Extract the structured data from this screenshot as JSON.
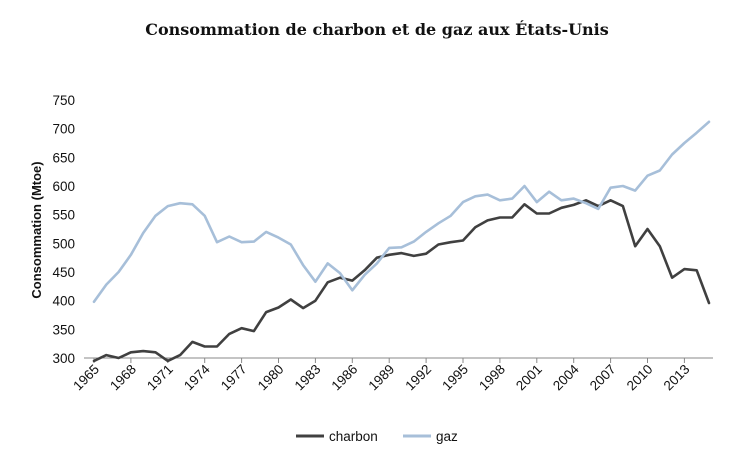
{
  "chart_data": {
    "type": "line",
    "title": "Consommation de charbon et de gaz aux États-Unis",
    "ylabel": "Consommation (Mtoe)",
    "xlabel": "",
    "ylim": [
      300,
      750
    ],
    "yticks": [
      300,
      350,
      400,
      450,
      500,
      550,
      600,
      650,
      700,
      750
    ],
    "xtick_labels": [
      "1965",
      "1968",
      "1971",
      "1974",
      "1977",
      "1980",
      "1983",
      "1986",
      "1989",
      "1992",
      "1995",
      "1998",
      "2001",
      "2004",
      "2007",
      "2010",
      "2013"
    ],
    "grid": false,
    "legend_position": "bottom",
    "x": [
      1965,
      1966,
      1967,
      1968,
      1969,
      1970,
      1971,
      1972,
      1973,
      1974,
      1975,
      1976,
      1977,
      1978,
      1979,
      1980,
      1981,
      1982,
      1983,
      1984,
      1985,
      1986,
      1987,
      1988,
      1989,
      1990,
      1991,
      1992,
      1993,
      1994,
      1995,
      1996,
      1997,
      1998,
      1999,
      2000,
      2001,
      2002,
      2003,
      2004,
      2005,
      2006,
      2007,
      2008,
      2009,
      2010,
      2011,
      2012,
      2013,
      2014,
      2015
    ],
    "series": [
      {
        "name": "charbon",
        "color": "#404040",
        "values": [
          295,
          305,
          300,
          310,
          312,
          310,
          295,
          305,
          328,
          320,
          320,
          342,
          352,
          347,
          380,
          388,
          402,
          387,
          400,
          432,
          440,
          435,
          453,
          475,
          480,
          483,
          478,
          482,
          498,
          502,
          505,
          528,
          540,
          545,
          545,
          568,
          552,
          552,
          562,
          567,
          575,
          565,
          575,
          565,
          495,
          525,
          495,
          440,
          455,
          453,
          396
        ]
      },
      {
        "name": "gaz",
        "color": "#a7bfd9",
        "values": [
          398,
          428,
          450,
          480,
          518,
          548,
          565,
          570,
          568,
          548,
          502,
          512,
          502,
          503,
          520,
          510,
          498,
          462,
          433,
          465,
          448,
          418,
          445,
          465,
          492,
          493,
          503,
          520,
          535,
          548,
          572,
          582,
          585,
          575,
          578,
          600,
          572,
          590,
          575,
          578,
          570,
          560,
          597,
          600,
          592,
          618,
          627,
          655,
          675,
          693,
          712
        ]
      }
    ]
  }
}
